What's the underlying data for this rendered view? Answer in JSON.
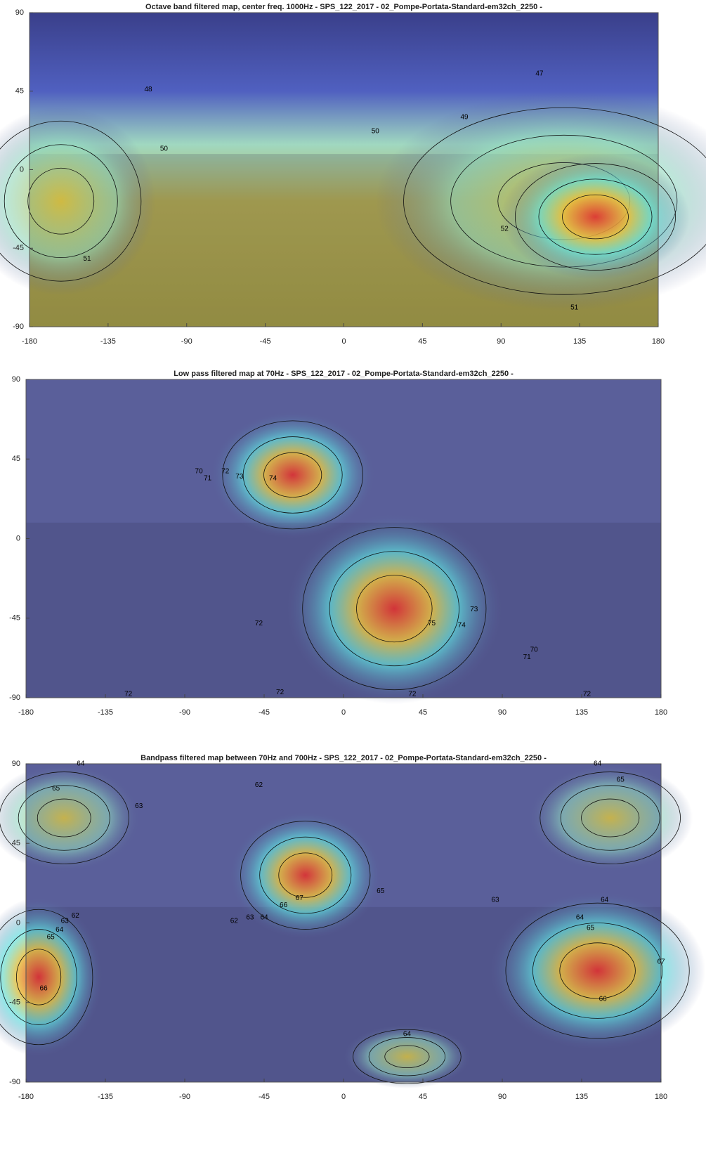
{
  "chart_data": [
    {
      "type": "heatmap",
      "title": "Octave band filtered map, center freq. 1000Hz - SPS_122_2017 - 02_Pompe-Portata-Standard-em32ch_2250 -",
      "xlim": [
        -180,
        180
      ],
      "ylim": [
        -90,
        90
      ],
      "xticks": [
        -180,
        -135,
        -90,
        -45,
        0,
        45,
        90,
        135,
        180
      ],
      "yticks": [
        -90,
        -45,
        0,
        45,
        90
      ],
      "contour_labels": [
        {
          "x": 112,
          "y": 55,
          "value": 47
        },
        {
          "x": -112,
          "y": 46,
          "value": 48
        },
        {
          "x": 69,
          "y": 30,
          "value": 49
        },
        {
          "x": 18,
          "y": 22,
          "value": 50
        },
        {
          "x": -103,
          "y": 12,
          "value": 50
        },
        {
          "x": 92,
          "y": -34,
          "value": 52
        },
        {
          "x": -147,
          "y": -51,
          "value": 51
        },
        {
          "x": 132,
          "y": -79,
          "value": 51
        }
      ]
    },
    {
      "type": "heatmap",
      "title": "Low pass filtered map at 70Hz - SPS_122_2017 - 02_Pompe-Portata-Standard-em32ch_2250 -",
      "xlim": [
        -180,
        180
      ],
      "ylim": [
        -90,
        90
      ],
      "xticks": [
        -180,
        -135,
        -90,
        -45,
        0,
        45,
        90,
        135,
        180
      ],
      "yticks": [
        -90,
        -45,
        0,
        45,
        90
      ],
      "contour_labels": [
        {
          "x": -82,
          "y": 38,
          "value": 70
        },
        {
          "x": -77,
          "y": 34,
          "value": 71
        },
        {
          "x": -67,
          "y": 38,
          "value": 72
        },
        {
          "x": -59,
          "y": 35,
          "value": 73
        },
        {
          "x": -40,
          "y": 34,
          "value": 74
        },
        {
          "x": -48,
          "y": -48,
          "value": 72
        },
        {
          "x": 50,
          "y": -48,
          "value": 75
        },
        {
          "x": 67,
          "y": -49,
          "value": 74
        },
        {
          "x": 74,
          "y": -40,
          "value": 73
        },
        {
          "x": 108,
          "y": -63,
          "value": 70
        },
        {
          "x": 104,
          "y": -67,
          "value": 71
        },
        {
          "x": -122,
          "y": -88,
          "value": 72
        },
        {
          "x": -36,
          "y": -87,
          "value": 72
        },
        {
          "x": 39,
          "y": -88,
          "value": 72
        },
        {
          "x": 138,
          "y": -88,
          "value": 72
        }
      ]
    },
    {
      "type": "heatmap",
      "title": "Bandpass filtered map between 70Hz and 700Hz - SPS_122_2017 - 02_Pompe-Portata-Standard-em32ch_2250 -",
      "xlim": [
        -180,
        180
      ],
      "ylim": [
        -90,
        90
      ],
      "xticks": [
        -180,
        -135,
        -90,
        -45,
        0,
        45,
        90,
        135,
        180
      ],
      "yticks": [
        -90,
        -45,
        0,
        45,
        90
      ],
      "contour_labels": [
        {
          "x": -149,
          "y": 90,
          "value": 64
        },
        {
          "x": -163,
          "y": 76,
          "value": 65
        },
        {
          "x": -116,
          "y": 66,
          "value": 63
        },
        {
          "x": -48,
          "y": 78,
          "value": 62
        },
        {
          "x": 144,
          "y": 90,
          "value": 64
        },
        {
          "x": 157,
          "y": 81,
          "value": 65
        },
        {
          "x": -25,
          "y": 14,
          "value": 67
        },
        {
          "x": -34,
          "y": 10,
          "value": 66
        },
        {
          "x": 21,
          "y": 18,
          "value": 65
        },
        {
          "x": -45,
          "y": 3,
          "value": 64
        },
        {
          "x": -53,
          "y": 3,
          "value": 63
        },
        {
          "x": -62,
          "y": 1,
          "value": 62
        },
        {
          "x": 86,
          "y": 13,
          "value": 63
        },
        {
          "x": 148,
          "y": 13,
          "value": 64
        },
        {
          "x": 134,
          "y": 3,
          "value": 64
        },
        {
          "x": 140,
          "y": -3,
          "value": 65
        },
        {
          "x": -152,
          "y": 4,
          "value": 62
        },
        {
          "x": -158,
          "y": 1,
          "value": 63
        },
        {
          "x": -161,
          "y": -4,
          "value": 64
        },
        {
          "x": -166,
          "y": -8,
          "value": 65
        },
        {
          "x": -170,
          "y": -37,
          "value": 66
        },
        {
          "x": 180,
          "y": -22,
          "value": 67
        },
        {
          "x": 147,
          "y": -43,
          "value": 66
        },
        {
          "x": 36,
          "y": -63,
          "value": 64
        }
      ]
    }
  ]
}
